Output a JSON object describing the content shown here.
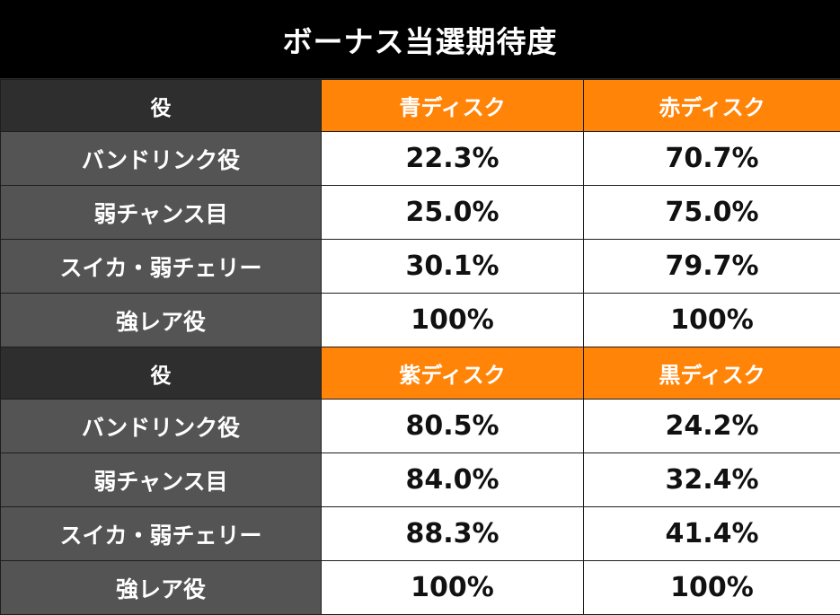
{
  "title": "ボーナス当選期待度",
  "colors": {
    "header_bg": "#000000",
    "accent": "#ff8408",
    "role_bg": "#545454",
    "role_head_bg": "#2e2e2e"
  },
  "sections": [
    {
      "role_header": "役",
      "disc_headers": [
        "青ディスク",
        "赤ディスク"
      ],
      "rows": [
        {
          "role": "バンドリンク役",
          "values": [
            "22.3%",
            "70.7%"
          ]
        },
        {
          "role": "弱チャンス目",
          "values": [
            "25.0%",
            "75.0%"
          ]
        },
        {
          "role": "スイカ・弱チェリー",
          "values": [
            "30.1%",
            "79.7%"
          ]
        },
        {
          "role": "強レア役",
          "values": [
            "100%",
            "100%"
          ]
        }
      ]
    },
    {
      "role_header": "役",
      "disc_headers": [
        "紫ディスク",
        "黒ディスク"
      ],
      "rows": [
        {
          "role": "バンドリンク役",
          "values": [
            "80.5%",
            "24.2%"
          ]
        },
        {
          "role": "弱チャンス目",
          "values": [
            "84.0%",
            "32.4%"
          ]
        },
        {
          "role": "スイカ・弱チェリー",
          "values": [
            "88.3%",
            "41.4%"
          ]
        },
        {
          "role": "強レア役",
          "values": [
            "100%",
            "100%"
          ]
        }
      ]
    }
  ]
}
